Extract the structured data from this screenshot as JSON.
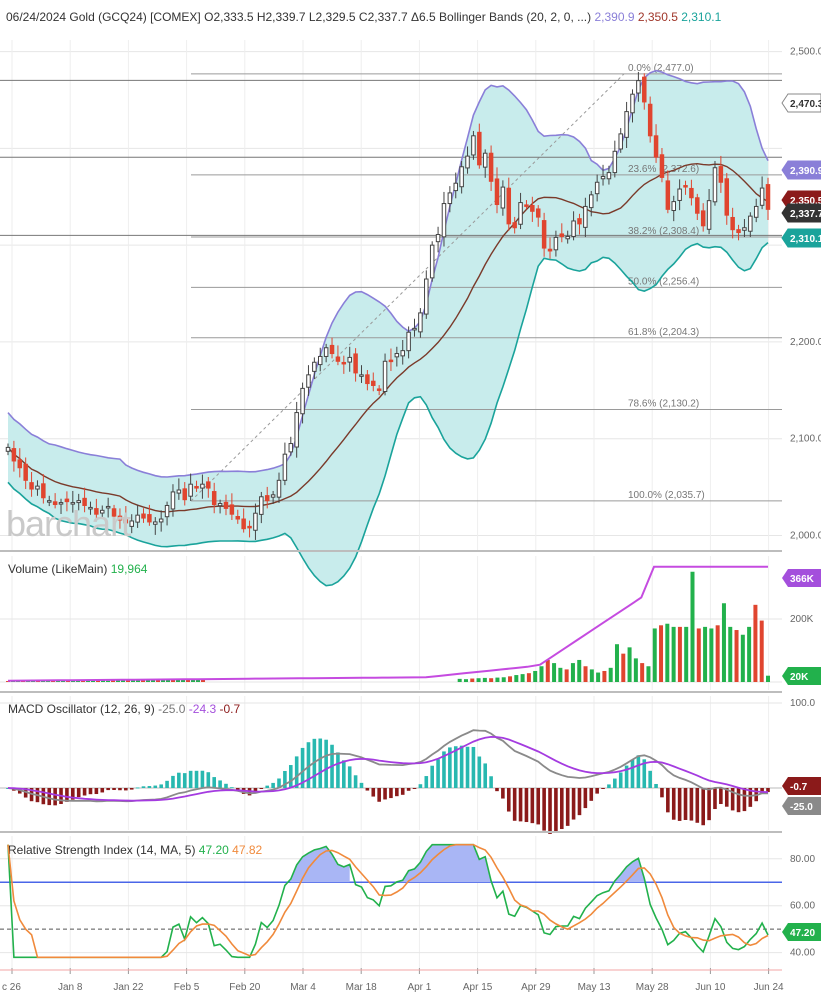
{
  "header": {
    "date": "06/24/2024",
    "instrument": "Gold (GCQ24) [COMEX]",
    "ohlc": "O2,333.5 H2,339.7 L2,329.5 C2,337.7",
    "change": "Δ6.5",
    "indicator": "Bollinger Bands",
    "params": "(20, 2, 0, ...)",
    "upper": "2,390.9",
    "middle": "2,350.5",
    "lower": "2,310.1",
    "colors": {
      "upper": "#8a7fd8",
      "middle": "#a0362a",
      "lower": "#1aa39b"
    }
  },
  "watermark": "barchart",
  "x_labels": [
    "c 26",
    "Jan 8",
    "Jan 22",
    "Feb 5",
    "Feb 20",
    "Mar 4",
    "Mar 18",
    "Apr 1",
    "Apr 15",
    "Apr 29",
    "May 13",
    "May 28",
    "Jun 10",
    "Jun 24"
  ],
  "price_pane": {
    "y_ticks": [
      "2,500.0",
      "2,200.0",
      "2,100.0",
      "2,000.0"
    ],
    "ylim": [
      1985,
      2512
    ],
    "tags": [
      {
        "label": "2,470.3",
        "value": 2470.3,
        "bg": "#ffffff",
        "fg": "#333333",
        "border": "#888888"
      },
      {
        "label": "2,390.9",
        "value": 2390.9,
        "bg": "#8a7fd8",
        "fg": "#ffffff",
        "border": "#8a7fd8"
      },
      {
        "label": "2,350.5",
        "value": 2350.5,
        "bg": "#8b1a1a",
        "fg": "#ffffff",
        "border": "#8b1a1a"
      },
      {
        "label": "2,337.7",
        "value": 2337.7,
        "bg": "#333333",
        "fg": "#ffffff",
        "border": "#333333"
      },
      {
        "label": "2,310.1",
        "value": 2310.1,
        "bg": "#1aa39b",
        "fg": "#ffffff",
        "border": "#1aa39b"
      }
    ],
    "fib_levels": [
      {
        "label": "0.0% (2,477.0)",
        "value": 2477.0
      },
      {
        "label": "23.6% (2,372.6)",
        "value": 2372.6
      },
      {
        "label": "38.2% (2,308.4)",
        "value": 2308.4
      },
      {
        "label": "50.0% (2,256.4)",
        "value": 2256.4
      },
      {
        "label": "61.8% (2,204.3)",
        "value": 2204.3
      },
      {
        "label": "78.6% (2,130.2)",
        "value": 2130.2
      },
      {
        "label": "100.0% (2,035.7)",
        "value": 2035.7
      }
    ]
  },
  "volume_pane": {
    "title": "Volume",
    "subtitle": "(LikeMain)",
    "value": "19,964",
    "y_ticks": [
      "200K"
    ],
    "tags": [
      {
        "label": "366K",
        "bg": "#a44fdc",
        "fg": "#ffffff"
      },
      {
        "label": "20K",
        "bg": "#22b14c",
        "fg": "#ffffff"
      }
    ]
  },
  "macd_pane": {
    "title": "MACD Oscillator",
    "params": "(12, 26, 9)",
    "macd": "-25.0",
    "signal": "-24.3",
    "hist": "-0.7",
    "y_ticks": [
      "100.0"
    ],
    "tags": [
      {
        "label": "-0.7",
        "bg": "#8b1a1a",
        "fg": "#ffffff"
      },
      {
        "label": "-25.0",
        "bg": "#8a8a8a",
        "fg": "#ffffff"
      }
    ]
  },
  "rsi_pane": {
    "title": "Relative Strength Index",
    "params": "(14, MA, 5)",
    "rsi": "47.20",
    "ma": "47.82",
    "y_ticks": [
      "80.00",
      "60.00",
      "40.00"
    ],
    "ylim": [
      36,
      88
    ],
    "overbought": 70,
    "oversold": 30,
    "middle": 50,
    "tags": [
      {
        "label": "47.20",
        "bg": "#22b14c",
        "fg": "#ffffff"
      }
    ]
  },
  "chart_data": {
    "type": "candlestick",
    "title": "06/24/2024 Gold (GCQ24) [COMEX]",
    "period": "daily",
    "x_range": [
      "2023-12-26",
      "2024-06-24"
    ],
    "price_ylim": [
      1985,
      2512
    ],
    "close_approx": [
      2091,
      2077,
      2070,
      2057,
      2048,
      2051,
      2039,
      2036,
      2032,
      2034,
      2035,
      2034,
      2036,
      2031,
      2029,
      2022,
      2026,
      2030,
      2020,
      2016,
      2013,
      2015,
      2021,
      2018,
      2014,
      2014,
      2017,
      2031,
      2045,
      2047,
      2037,
      2053,
      2049,
      2053,
      2049,
      2032,
      2033,
      2028,
      2022,
      2017,
      2007,
      2009,
      2023,
      2040,
      2036,
      2042,
      2057,
      2084,
      2095,
      2127,
      2152,
      2166,
      2179,
      2185,
      2194,
      2188,
      2180,
      2178,
      2184,
      2168,
      2166,
      2157,
      2155,
      2150,
      2180,
      2181,
      2188,
      2191,
      2210,
      2214,
      2230,
      2265,
      2300,
      2311,
      2343,
      2354,
      2364,
      2381,
      2392,
      2413,
      2383,
      2395,
      2366,
      2342,
      2360,
      2322,
      2318,
      2344,
      2341,
      2335,
      2329,
      2297,
      2294,
      2308,
      2309,
      2309,
      2325,
      2322,
      2340,
      2352,
      2365,
      2371,
      2375,
      2397,
      2415,
      2438,
      2456,
      2470,
      2448,
      2413,
      2391,
      2370,
      2337,
      2345,
      2358,
      2361,
      2349,
      2333,
      2320,
      2346,
      2380,
      2365,
      2331,
      2316,
      2313,
      2318,
      2330,
      2340,
      2359,
      2337
    ],
    "bollinger": {
      "params": "(20, 2, 0)",
      "upper_last": 2390.9,
      "middle_last": 2350.5,
      "lower_last": 2310.1
    },
    "fibonacci": {
      "high": 2477.0,
      "low": 2035.7,
      "levels": [
        0.0,
        23.6,
        38.2,
        50.0,
        61.8,
        78.6,
        100.0
      ]
    },
    "volume": {
      "last": 19964,
      "ma_last": 366000,
      "bars_approx_k": [
        3,
        3,
        4,
        3,
        4,
        4,
        3,
        4,
        3,
        4,
        4,
        4,
        4,
        5,
        4,
        4,
        5,
        4,
        5,
        5,
        4,
        5,
        5,
        5,
        6,
        5,
        6,
        6,
        5,
        6,
        7,
        6,
        7,
        7,
        8,
        7,
        8,
        8,
        9,
        9,
        10,
        9,
        11,
        12,
        13,
        12,
        14,
        15,
        18,
        22,
        25,
        28,
        35,
        50,
        70,
        60,
        45,
        40,
        60,
        70,
        50,
        40,
        30,
        35,
        45,
        120,
        90,
        110,
        75,
        60,
        50,
        170,
        180,
        185,
        175,
        175,
        175,
        350,
        170,
        175,
        170,
        180,
        250,
        175,
        165,
        150,
        175,
        245,
        195,
        20
      ]
    },
    "macd": {
      "macd_last": -25.0,
      "signal_last": -24.3,
      "hist_last": -0.7
    },
    "rsi": {
      "rsi_last": 47.2,
      "ma_last": 47.82,
      "overbought": 70,
      "oversold": 30
    }
  }
}
